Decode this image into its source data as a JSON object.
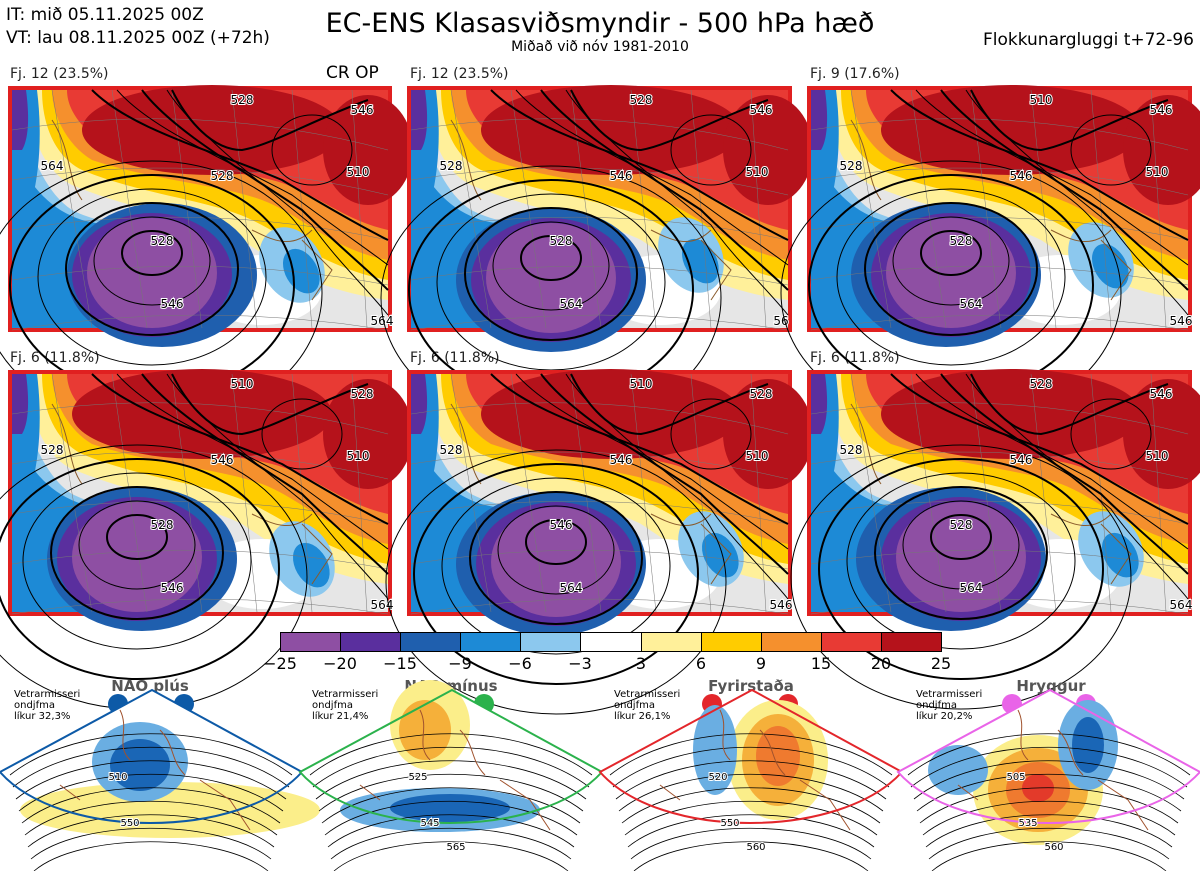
{
  "header": {
    "it_line": "IT: mið 05.11.2025 00Z",
    "vt_line": "VT: lau 08.11.2025 00Z  (+72h)",
    "title": "EC-ENS Klasasviðsmyndir - 500 hPa hæð",
    "subtitle": "Miðað við nóv 1981-2010",
    "window": "Flokkunargluggi t+72-96"
  },
  "panels": [
    {
      "label": "Fj. 12 (23.5%)",
      "tag": "CR OP",
      "contours": [
        "528",
        "546",
        "564",
        "528",
        "510",
        "528",
        "546",
        "564"
      ]
    },
    {
      "label": "Fj. 12 (23.5%)",
      "tag": "",
      "contours": [
        "528",
        "546",
        "528",
        "546",
        "510",
        "528",
        "564",
        "56"
      ]
    },
    {
      "label": "Fj. 9 (17.6%)",
      "tag": "",
      "contours": [
        "510",
        "546",
        "528",
        "546",
        "510",
        "528",
        "564",
        "546"
      ]
    },
    {
      "label": "Fj. 6 (11.8%)",
      "tag": "",
      "contours": [
        "510",
        "528",
        "528",
        "546",
        "510",
        "528",
        "546",
        "564"
      ]
    },
    {
      "label": "Fj. 6 (11.8%)",
      "tag": "",
      "contours": [
        "510",
        "528",
        "528",
        "546",
        "510",
        "546",
        "564",
        "546"
      ]
    },
    {
      "label": "Fj. 6 (11.8%)",
      "tag": "",
      "contours": [
        "528",
        "546",
        "528",
        "546",
        "510",
        "528",
        "564",
        "564"
      ]
    }
  ],
  "colorbar": {
    "ticks": [
      "−25",
      "−20",
      "−15",
      "−9",
      "−6",
      "−3",
      "3",
      "6",
      "9",
      "15",
      "20",
      "25"
    ],
    "colors": [
      "#8e4fa3",
      "#5a2f9e",
      "#1f5fae",
      "#1d8ad6",
      "#8cc8ee",
      "#ffffff",
      "#fff09a",
      "#ffcc00",
      "#f5902d",
      "#e83a34",
      "#b5121b"
    ]
  },
  "regimes": [
    {
      "name": "NAO plús",
      "note": [
        "Vetrarmisseri",
        "ondjfma",
        "líkur 32,3%"
      ],
      "color": "#0d5aa7",
      "contours": [
        "510",
        "550"
      ]
    },
    {
      "name": "NAO mínus",
      "note": [
        "Vetrarmisseri",
        "ondjfma",
        "líkur 21,4%"
      ],
      "color": "#2bb24c",
      "contours": [
        "525",
        "545",
        "565"
      ]
    },
    {
      "name": "Fyrirstaða",
      "note": [
        "Vetrarmisseri",
        "ondjfma",
        "líkur 26,1%"
      ],
      "color": "#e3262b",
      "contours": [
        "520",
        "550",
        "560"
      ]
    },
    {
      "name": "Hryggur",
      "note": [
        "Vetrarmisseri",
        "ondjfma",
        "líkur 20,2%"
      ],
      "color": "#e964e8",
      "contours": [
        "505",
        "535",
        "560"
      ]
    }
  ]
}
